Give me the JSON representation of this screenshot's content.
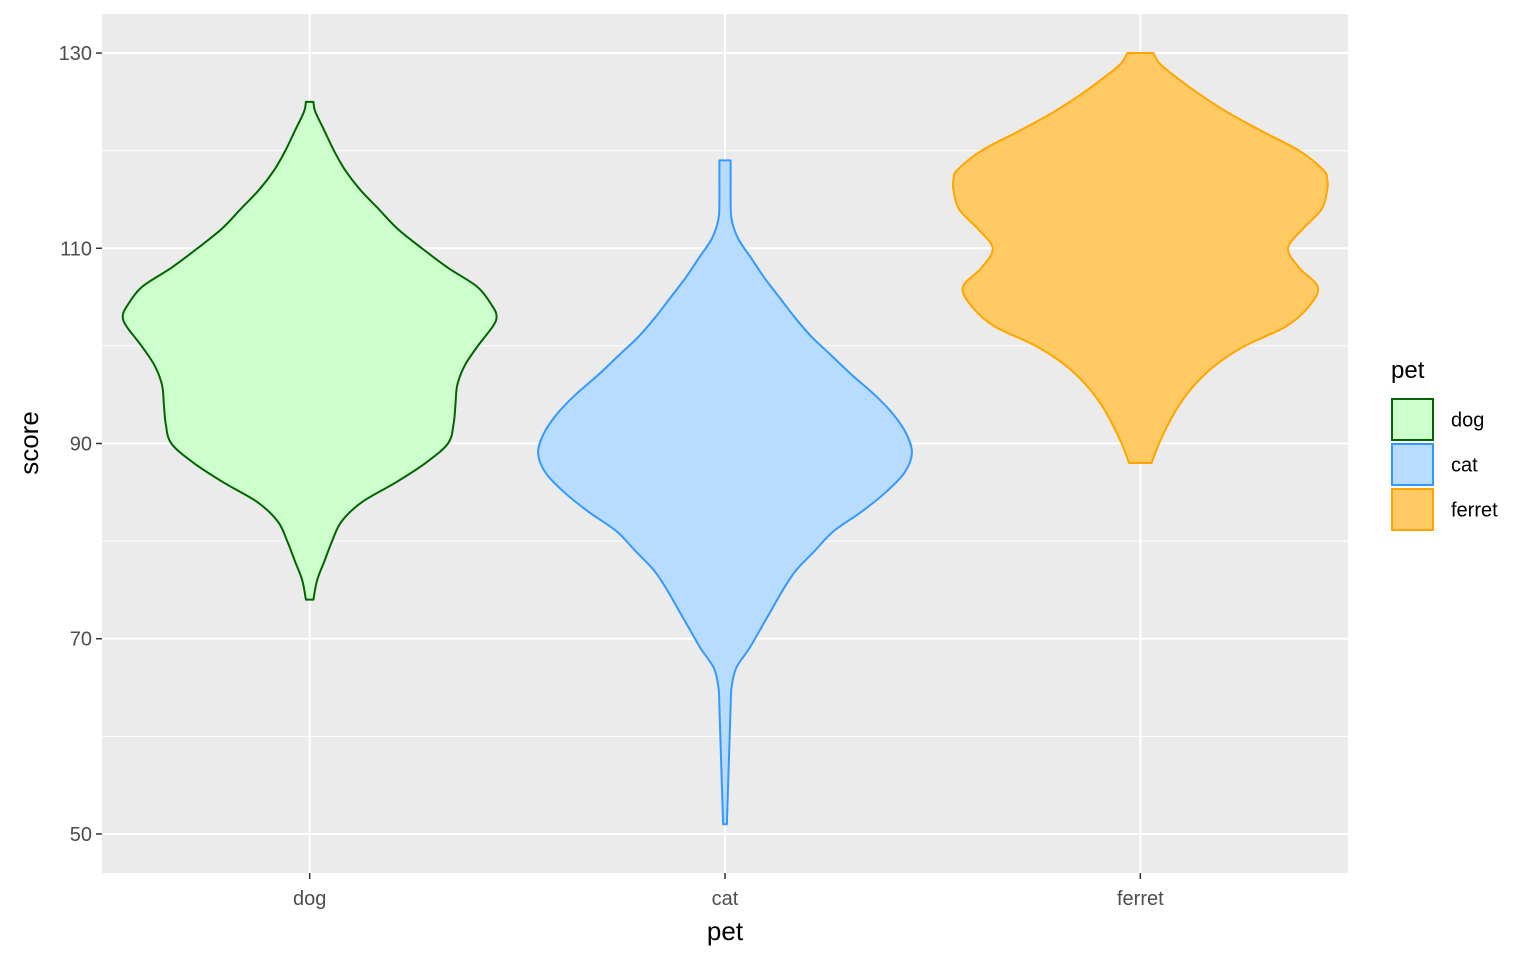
{
  "chart_data": {
    "type": "violin",
    "xlabel": "pet",
    "ylabel": "score",
    "categories": [
      "dog",
      "cat",
      "ferret"
    ],
    "ylim": [
      46,
      134
    ],
    "yticks": [
      50,
      70,
      90,
      110,
      130
    ],
    "grid": true,
    "legend": {
      "title": "pet",
      "placement": "right",
      "entries": [
        "dog",
        "cat",
        "ferret"
      ]
    },
    "series": [
      {
        "name": "dog",
        "fill": "#ccffcc",
        "stroke": "#006400",
        "min": 74,
        "max": 125,
        "profile": [
          [
            74,
            0.02
          ],
          [
            76,
            0.04
          ],
          [
            78,
            0.08
          ],
          [
            80,
            0.12
          ],
          [
            82,
            0.17
          ],
          [
            84,
            0.28
          ],
          [
            86,
            0.46
          ],
          [
            88,
            0.62
          ],
          [
            90,
            0.74
          ],
          [
            92,
            0.77
          ],
          [
            94,
            0.78
          ],
          [
            96,
            0.79
          ],
          [
            98,
            0.83
          ],
          [
            100,
            0.9
          ],
          [
            102,
            0.98
          ],
          [
            103,
            1.0
          ],
          [
            104,
            0.98
          ],
          [
            106,
            0.9
          ],
          [
            108,
            0.74
          ],
          [
            110,
            0.6
          ],
          [
            112,
            0.47
          ],
          [
            114,
            0.37
          ],
          [
            116,
            0.27
          ],
          [
            118,
            0.19
          ],
          [
            120,
            0.13
          ],
          [
            122,
            0.08
          ],
          [
            124,
            0.03
          ],
          [
            125,
            0.02
          ]
        ]
      },
      {
        "name": "cat",
        "fill": "#b8dcff",
        "stroke": "#3399ff",
        "min": 51,
        "max": 119,
        "profile": [
          [
            51,
            0.01
          ],
          [
            54,
            0.015
          ],
          [
            57,
            0.02
          ],
          [
            60,
            0.025
          ],
          [
            63,
            0.03
          ],
          [
            65,
            0.035
          ],
          [
            67,
            0.06
          ],
          [
            69,
            0.13
          ],
          [
            71,
            0.19
          ],
          [
            73,
            0.25
          ],
          [
            75,
            0.31
          ],
          [
            77,
            0.38
          ],
          [
            79,
            0.48
          ],
          [
            81,
            0.58
          ],
          [
            83,
            0.73
          ],
          [
            85,
            0.86
          ],
          [
            87,
            0.96
          ],
          [
            89,
            1.0
          ],
          [
            91,
            0.97
          ],
          [
            93,
            0.9
          ],
          [
            95,
            0.8
          ],
          [
            97,
            0.68
          ],
          [
            99,
            0.57
          ],
          [
            101,
            0.46
          ],
          [
            103,
            0.37
          ],
          [
            105,
            0.29
          ],
          [
            107,
            0.21
          ],
          [
            109,
            0.14
          ],
          [
            111,
            0.07
          ],
          [
            113,
            0.035
          ],
          [
            115,
            0.03
          ],
          [
            117,
            0.03
          ],
          [
            119,
            0.03
          ]
        ]
      },
      {
        "name": "ferret",
        "fill": "#ffca64",
        "stroke": "#ffa500",
        "min": 88,
        "max": 130,
        "profile": [
          [
            88,
            0.06
          ],
          [
            90,
            0.1
          ],
          [
            92,
            0.15
          ],
          [
            94,
            0.21
          ],
          [
            96,
            0.29
          ],
          [
            98,
            0.4
          ],
          [
            100,
            0.56
          ],
          [
            102,
            0.78
          ],
          [
            104,
            0.9
          ],
          [
            106,
            0.95
          ],
          [
            108,
            0.85
          ],
          [
            110,
            0.79
          ],
          [
            112,
            0.87
          ],
          [
            114,
            0.97
          ],
          [
            116,
            1.0
          ],
          [
            117,
            1.0
          ],
          [
            118,
            0.98
          ],
          [
            120,
            0.85
          ],
          [
            122,
            0.65
          ],
          [
            124,
            0.46
          ],
          [
            126,
            0.3
          ],
          [
            128,
            0.16
          ],
          [
            129,
            0.1
          ],
          [
            130,
            0.07
          ]
        ]
      }
    ]
  }
}
